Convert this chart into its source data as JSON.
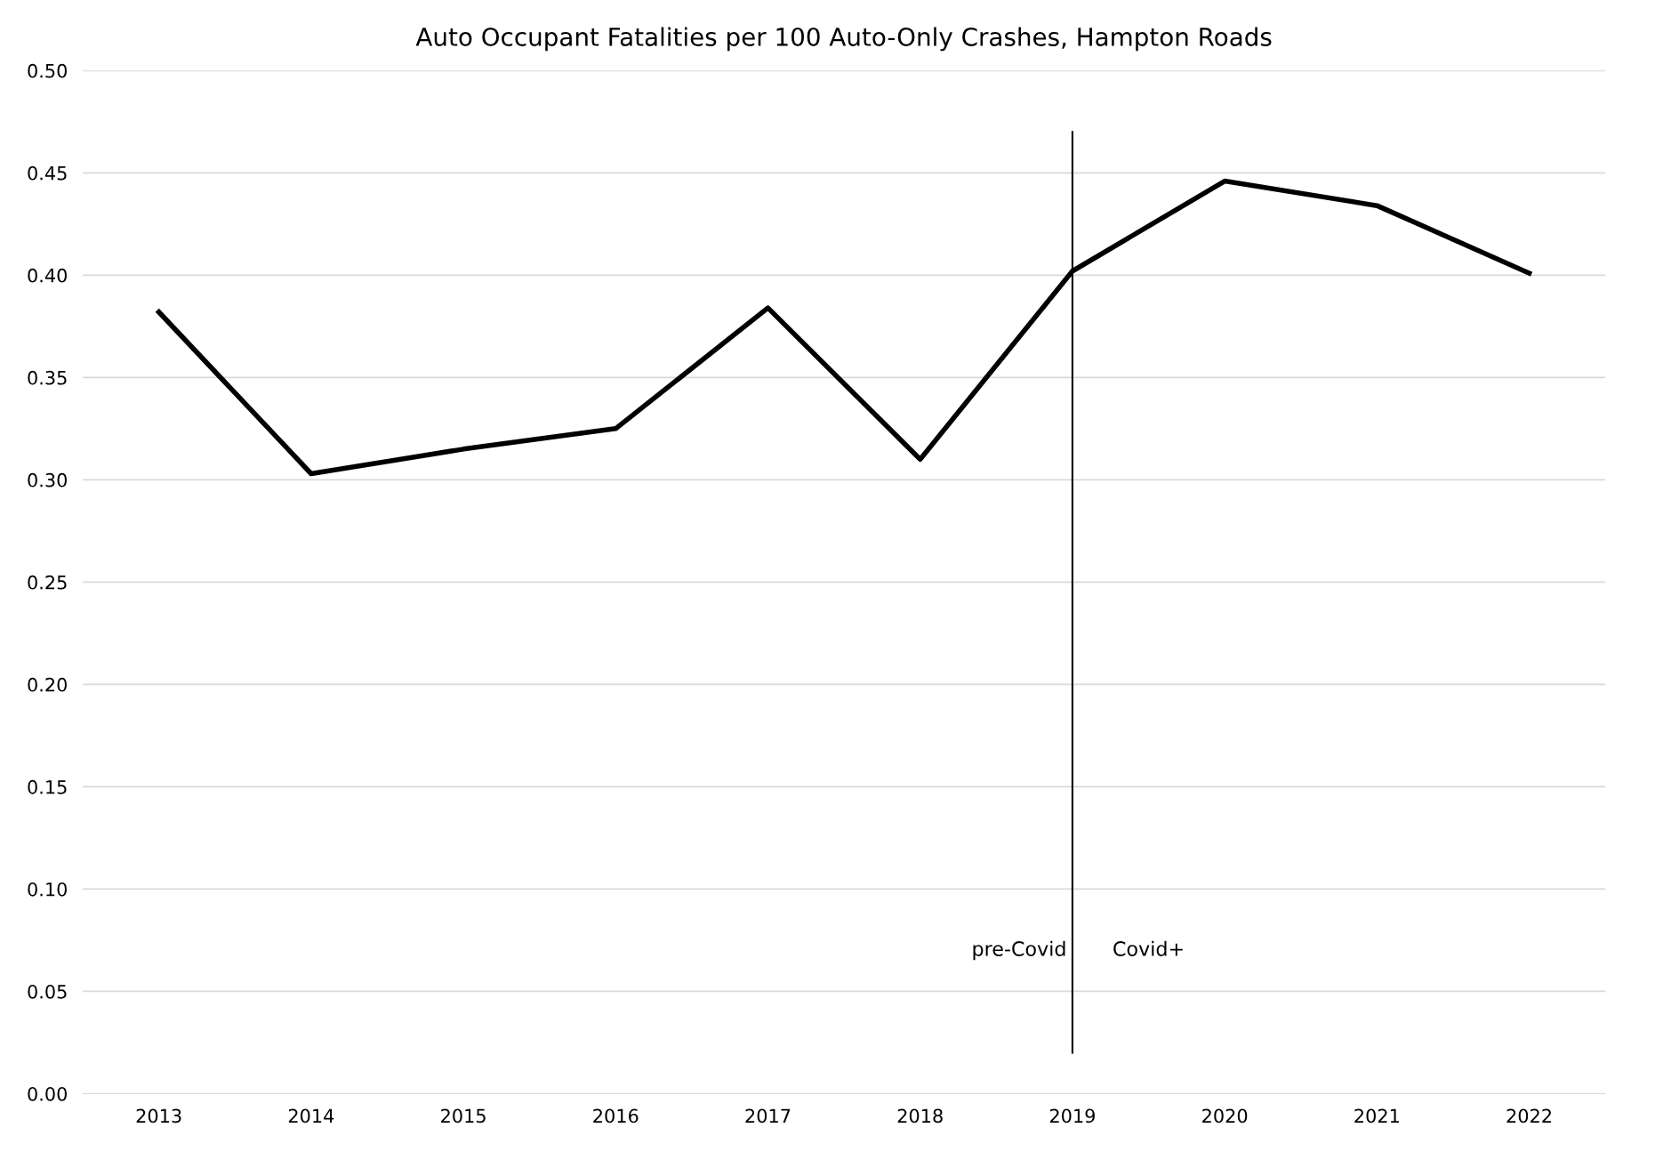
{
  "chart_data": {
    "type": "line",
    "title": "Auto Occupant Fatalities per 100 Auto-Only Crashes, Hampton Roads",
    "categories": [
      "2013",
      "2014",
      "2015",
      "2016",
      "2017",
      "2018",
      "2019",
      "2020",
      "2021",
      "2022"
    ],
    "series": [
      {
        "color": "#000000",
        "values": [
          0.382,
          0.303,
          0.315,
          0.325,
          0.384,
          0.31,
          0.402,
          0.446,
          0.434,
          0.401
        ]
      }
    ],
    "ylim": [
      0,
      0.5
    ],
    "yticks": [
      {
        "value": 0,
        "label": "0.00"
      },
      {
        "value": 0.05,
        "label": "0.05"
      },
      {
        "value": 0.1,
        "label": "0.10"
      },
      {
        "value": 0.15,
        "label": "0.15"
      },
      {
        "value": 0.2,
        "label": "0.20"
      },
      {
        "value": 0.25,
        "label": "0.25"
      },
      {
        "value": 0.3,
        "label": "0.30"
      },
      {
        "value": 0.35,
        "label": "0.35"
      },
      {
        "value": 0.4,
        "label": "0.40"
      },
      {
        "value": 0.45,
        "label": "0.45"
      },
      {
        "value": 0.5,
        "label": "0.50"
      }
    ],
    "ref_lines": [
      {
        "axis": "x",
        "value": "2019",
        "color": "#000000"
      }
    ],
    "annotations": [
      "pre-Covid",
      "Covid+"
    ],
    "grid": "y",
    "legend": false,
    "marker": "none",
    "line_style": "solid"
  }
}
